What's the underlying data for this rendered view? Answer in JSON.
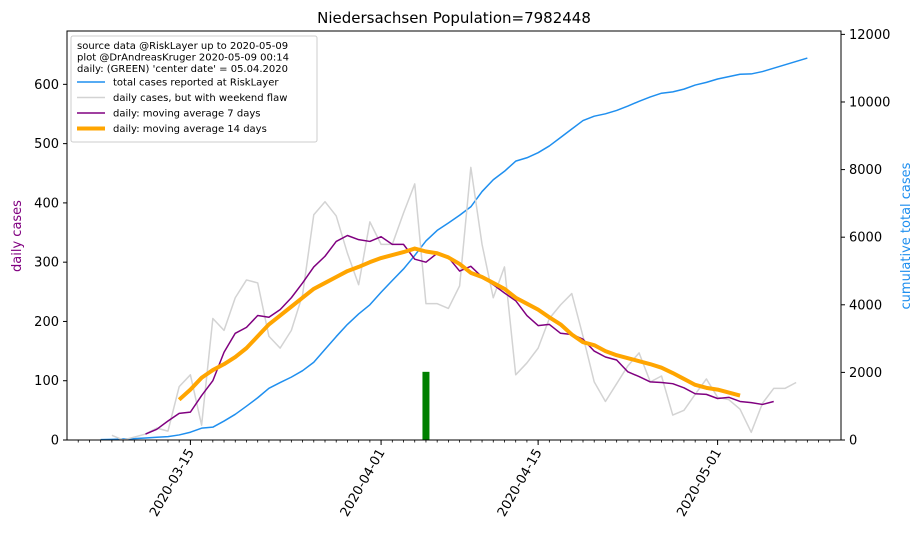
{
  "chart_data": {
    "type": "line",
    "title": "Niedersachsen Population=7982448",
    "ylabel_left": "daily cases",
    "ylabel_right": "cumulative total cases",
    "ylim_left": [
      0,
      690
    ],
    "ylim_right": [
      0,
      12100
    ],
    "yticks_left": [
      0,
      100,
      200,
      300,
      400,
      500,
      600
    ],
    "yticks_right": [
      0,
      2000,
      4000,
      6000,
      8000,
      10000,
      12000
    ],
    "xlim": [
      "2020-03-04",
      "2020-05-12"
    ],
    "xticks": [
      "2020-03-15",
      "2020-04-01",
      "2020-04-15",
      "2020-05-01"
    ],
    "legend_position": "upper-left",
    "annotation_lines": [
      "source data @RiskLayer up to 2020-05-09",
      "plot @DrAndreasKruger 2020-05-09 00:14",
      "daily: (GREEN) 'center date' = 05.04.2020"
    ],
    "center_date_bar": {
      "date": "2020-04-05",
      "value": 115,
      "color": "#008000"
    },
    "series": [
      {
        "name": "total cases reported at RiskLayer",
        "axis": "right",
        "color": "#1f8fef",
        "linewidth": 1.5,
        "x": [
          "2020-03-07",
          "2020-03-08",
          "2020-03-09",
          "2020-03-10",
          "2020-03-11",
          "2020-03-12",
          "2020-03-13",
          "2020-03-14",
          "2020-03-15",
          "2020-03-16",
          "2020-03-17",
          "2020-03-18",
          "2020-03-19",
          "2020-03-20",
          "2020-03-21",
          "2020-03-22",
          "2020-03-23",
          "2020-03-24",
          "2020-03-25",
          "2020-03-26",
          "2020-03-27",
          "2020-03-28",
          "2020-03-29",
          "2020-03-30",
          "2020-03-31",
          "2020-04-01",
          "2020-04-02",
          "2020-04-03",
          "2020-04-04",
          "2020-04-05",
          "2020-04-06",
          "2020-04-07",
          "2020-04-08",
          "2020-04-09",
          "2020-04-10",
          "2020-04-11",
          "2020-04-12",
          "2020-04-13",
          "2020-04-14",
          "2020-04-15",
          "2020-04-16",
          "2020-04-17",
          "2020-04-18",
          "2020-04-19",
          "2020-04-20",
          "2020-04-21",
          "2020-04-22",
          "2020-04-23",
          "2020-04-24",
          "2020-04-25",
          "2020-04-26",
          "2020-04-27",
          "2020-04-28",
          "2020-04-29",
          "2020-04-30",
          "2020-05-01",
          "2020-05-02",
          "2020-05-03",
          "2020-05-04",
          "2020-05-05",
          "2020-05-06",
          "2020-05-07",
          "2020-05-08",
          "2020-05-09"
        ],
        "values": [
          10,
          20,
          30,
          40,
          60,
          80,
          100,
          150,
          230,
          350,
          380,
          560,
          760,
          1000,
          1250,
          1530,
          1700,
          1860,
          2050,
          2300,
          2680,
          3060,
          3420,
          3730,
          4000,
          4370,
          4720,
          5060,
          5460,
          5890,
          6200,
          6420,
          6650,
          6900,
          7350,
          7700,
          7950,
          8250,
          8350,
          8500,
          8700,
          8950,
          9200,
          9450,
          9580,
          9650,
          9750,
          9880,
          10020,
          10150,
          10260,
          10300,
          10380,
          10500,
          10580,
          10680,
          10750,
          10820,
          10830,
          10900,
          11000,
          11100,
          11200,
          11300
        ]
      },
      {
        "name": "daily cases, but with weekend flaw",
        "axis": "left",
        "color": "#d3d3d3",
        "linewidth": 1.5,
        "x": [
          "2020-03-08",
          "2020-03-09",
          "2020-03-10",
          "2020-03-11",
          "2020-03-12",
          "2020-03-13",
          "2020-03-14",
          "2020-03-15",
          "2020-03-16",
          "2020-03-17",
          "2020-03-18",
          "2020-03-19",
          "2020-03-20",
          "2020-03-21",
          "2020-03-22",
          "2020-03-23",
          "2020-03-24",
          "2020-03-25",
          "2020-03-26",
          "2020-03-27",
          "2020-03-28",
          "2020-03-29",
          "2020-03-30",
          "2020-03-31",
          "2020-04-01",
          "2020-04-02",
          "2020-04-03",
          "2020-04-04",
          "2020-04-05",
          "2020-04-06",
          "2020-04-07",
          "2020-04-08",
          "2020-04-09",
          "2020-04-10",
          "2020-04-11",
          "2020-04-12",
          "2020-04-13",
          "2020-04-14",
          "2020-04-15",
          "2020-04-16",
          "2020-04-17",
          "2020-04-18",
          "2020-04-19",
          "2020-04-20",
          "2020-04-21",
          "2020-04-22",
          "2020-04-23",
          "2020-04-24",
          "2020-04-25",
          "2020-04-26",
          "2020-04-27",
          "2020-04-28",
          "2020-04-29",
          "2020-04-30",
          "2020-05-01",
          "2020-05-02",
          "2020-05-03",
          "2020-05-04",
          "2020-05-05",
          "2020-05-06",
          "2020-05-07",
          "2020-05-08",
          "2020-05-09"
        ],
        "values": [
          8,
          0,
          5,
          10,
          20,
          15,
          90,
          110,
          25,
          205,
          185,
          240,
          270,
          265,
          175,
          155,
          185,
          245,
          380,
          402,
          378,
          315,
          262,
          368,
          330,
          330,
          383,
          432,
          230,
          230,
          222,
          260,
          460,
          330,
          240,
          292,
          110,
          130,
          155,
          205,
          228,
          247,
          175,
          98,
          65,
          95,
          125,
          147,
          98,
          108,
          42,
          50,
          77,
          103,
          72,
          68,
          52,
          13,
          62,
          87,
          87,
          97,
          null
        ]
      },
      {
        "name": "daily: moving average 7 days",
        "axis": "left",
        "color": "#800080",
        "linewidth": 1.5,
        "x": [
          "2020-03-11",
          "2020-03-12",
          "2020-03-13",
          "2020-03-14",
          "2020-03-15",
          "2020-03-16",
          "2020-03-17",
          "2020-03-18",
          "2020-03-19",
          "2020-03-20",
          "2020-03-21",
          "2020-03-22",
          "2020-03-23",
          "2020-03-24",
          "2020-03-25",
          "2020-03-26",
          "2020-03-27",
          "2020-03-28",
          "2020-03-29",
          "2020-03-30",
          "2020-03-31",
          "2020-04-01",
          "2020-04-02",
          "2020-04-03",
          "2020-04-04",
          "2020-04-05",
          "2020-04-06",
          "2020-04-07",
          "2020-04-08",
          "2020-04-09",
          "2020-04-10",
          "2020-04-11",
          "2020-04-12",
          "2020-04-13",
          "2020-04-14",
          "2020-04-15",
          "2020-04-16",
          "2020-04-17",
          "2020-04-18",
          "2020-04-19",
          "2020-04-20",
          "2020-04-21",
          "2020-04-22",
          "2020-04-23",
          "2020-04-24",
          "2020-04-25",
          "2020-04-26",
          "2020-04-27",
          "2020-04-28",
          "2020-04-29",
          "2020-04-30",
          "2020-05-01",
          "2020-05-02",
          "2020-05-03",
          "2020-05-04",
          "2020-05-05",
          "2020-05-06"
        ],
        "values": [
          10,
          18,
          32,
          45,
          47,
          75,
          100,
          148,
          180,
          190,
          210,
          207,
          220,
          240,
          265,
          292,
          310,
          335,
          345,
          338,
          335,
          343,
          330,
          330,
          305,
          300,
          315,
          308,
          285,
          293,
          275,
          262,
          248,
          235,
          210,
          193,
          195,
          180,
          178,
          170,
          150,
          140,
          135,
          115,
          107,
          98,
          97,
          95,
          88,
          78,
          77,
          70,
          72,
          65,
          63,
          60,
          65
        ]
      },
      {
        "name": "daily: moving average 14 days",
        "axis": "left",
        "color": "#ffa500",
        "linewidth": 4,
        "x": [
          "2020-03-14",
          "2020-03-15",
          "2020-03-16",
          "2020-03-17",
          "2020-03-18",
          "2020-03-19",
          "2020-03-20",
          "2020-03-21",
          "2020-03-22",
          "2020-03-23",
          "2020-03-24",
          "2020-03-25",
          "2020-03-26",
          "2020-03-27",
          "2020-03-28",
          "2020-03-29",
          "2020-03-30",
          "2020-03-31",
          "2020-04-01",
          "2020-04-02",
          "2020-04-03",
          "2020-04-04",
          "2020-04-05",
          "2020-04-06",
          "2020-04-07",
          "2020-04-08",
          "2020-04-09",
          "2020-04-10",
          "2020-04-11",
          "2020-04-12",
          "2020-04-13",
          "2020-04-14",
          "2020-04-15",
          "2020-04-16",
          "2020-04-17",
          "2020-04-18",
          "2020-04-19",
          "2020-04-20",
          "2020-04-21",
          "2020-04-22",
          "2020-04-23",
          "2020-04-24",
          "2020-04-25",
          "2020-04-26",
          "2020-04-27",
          "2020-04-28",
          "2020-04-29",
          "2020-04-30",
          "2020-05-01",
          "2020-05-02",
          "2020-05-03"
        ],
        "values": [
          68,
          85,
          105,
          118,
          128,
          140,
          155,
          175,
          195,
          210,
          225,
          240,
          255,
          265,
          275,
          285,
          292,
          300,
          307,
          312,
          317,
          323,
          318,
          315,
          308,
          297,
          282,
          275,
          265,
          255,
          240,
          230,
          220,
          207,
          195,
          178,
          165,
          160,
          150,
          143,
          138,
          133,
          128,
          122,
          113,
          103,
          93,
          88,
          85,
          80,
          75
        ]
      }
    ]
  }
}
